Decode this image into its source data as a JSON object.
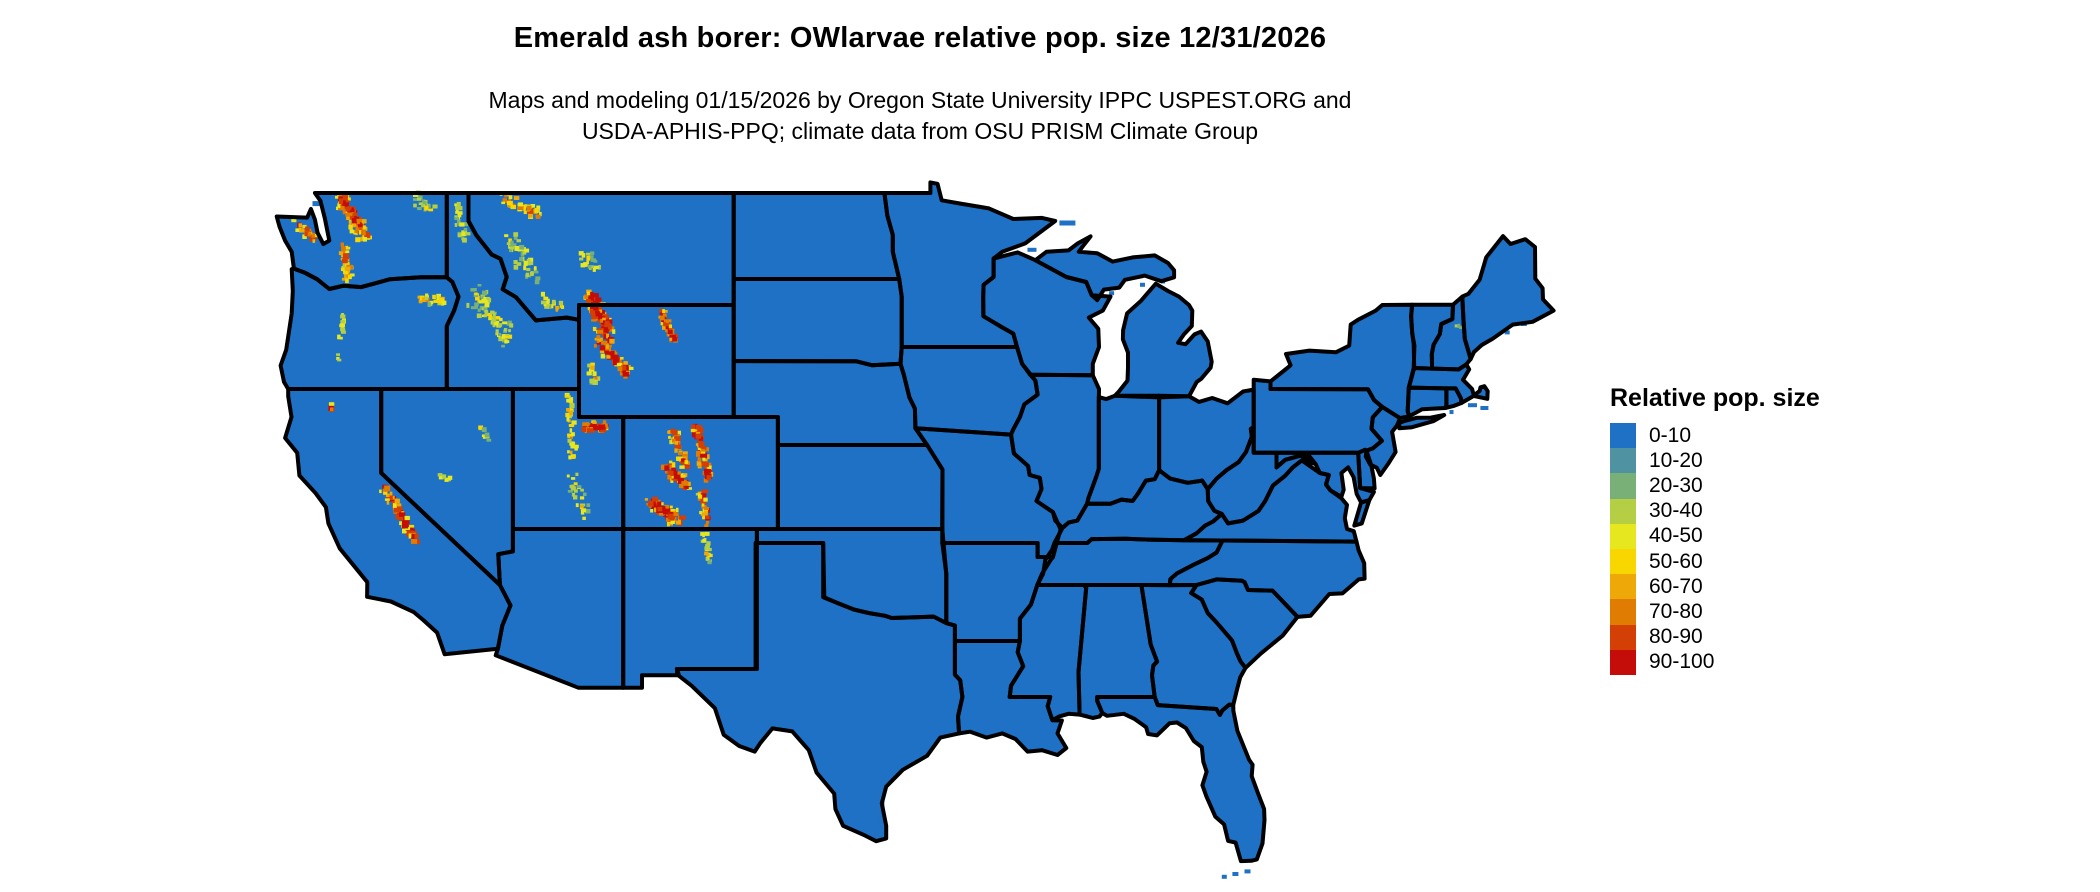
{
  "header": {
    "title": "Emerald ash borer: OWlarvae relative pop. size 12/31/2026",
    "subtitle_line1": "Maps and modeling 01/15/2026 by Oregon State University IPPC USPEST.ORG and",
    "subtitle_line2": "USDA-APHIS-PPQ; climate data from OSU PRISM Climate Group"
  },
  "legend": {
    "title": "Relative pop. size",
    "entries": [
      {
        "label": "0-10",
        "color": "#1E71C5"
      },
      {
        "label": "10-20",
        "color": "#4F93A2"
      },
      {
        "label": "20-30",
        "color": "#79B077"
      },
      {
        "label": "30-40",
        "color": "#B5CF45"
      },
      {
        "label": "40-50",
        "color": "#E6E71E"
      },
      {
        "label": "50-60",
        "color": "#F8D600"
      },
      {
        "label": "60-70",
        "color": "#EEA908"
      },
      {
        "label": "70-80",
        "color": "#E17C03"
      },
      {
        "label": "80-90",
        "color": "#D33F04"
      },
      {
        "label": "90-100",
        "color": "#C40D08"
      }
    ]
  },
  "map": {
    "base_fill": "#1E71C5",
    "border_color": "#000000",
    "background": "#FFFFFF"
  }
}
